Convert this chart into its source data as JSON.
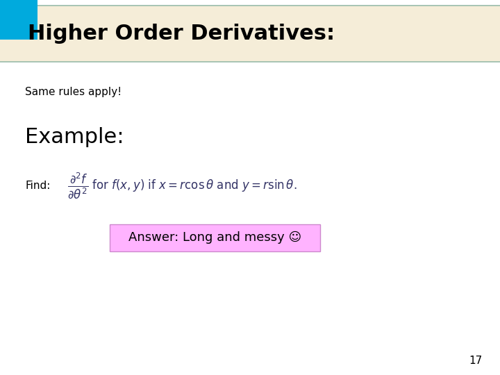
{
  "title": "Higher Order Derivatives:",
  "title_bg_color": "#F5EDD8",
  "title_text_color": "#000000",
  "title_fontsize": 22,
  "blue_square_color": "#00AADD",
  "header_line_color": "#99BBAA",
  "same_rules_text": "Same rules apply!",
  "same_rules_fontsize": 11,
  "example_text": "Example:",
  "example_fontsize": 22,
  "find_label": "Find:",
  "find_label_fontsize": 11,
  "formula": "$\\dfrac{\\partial^2 f}{\\partial \\theta^2}$ for $f(x,y)$ if $x = r\\cos\\theta$ and $y = r\\sin\\theta.$",
  "formula_fontsize": 12,
  "answer_text": "Answer: Long and messy ☺",
  "answer_fontsize": 13,
  "answer_bg_color": "#FFB3FF",
  "answer_border_color": "#CC88CC",
  "page_number": "17",
  "page_number_fontsize": 11,
  "bg_color": "#FFFFFF"
}
